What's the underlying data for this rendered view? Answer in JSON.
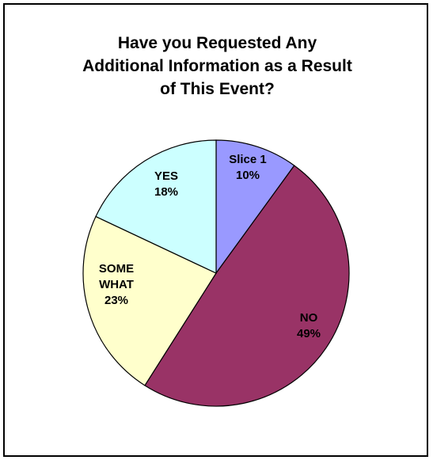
{
  "chart_data": {
    "type": "pie",
    "title_lines": [
      "Have you Requested Any",
      "Additional Information as a Result",
      "of This Event?"
    ],
    "slices": [
      {
        "label": "Slice 1",
        "value": 10,
        "value_text": "10%",
        "color": "#9999ff"
      },
      {
        "label": "NO",
        "value": 49,
        "value_text": "49%",
        "color": "#993366"
      },
      {
        "label": "SOME WHAT",
        "label_lines": [
          "SOME",
          "WHAT"
        ],
        "value": 23,
        "value_text": "23%",
        "color": "#ffffcc"
      },
      {
        "label": "YES",
        "value": 18,
        "value_text": "18%",
        "color": "#ccffff"
      }
    ],
    "start_angle": "12 o'clock",
    "direction": "clockwise",
    "legend": "none",
    "border_color": "#000000"
  }
}
